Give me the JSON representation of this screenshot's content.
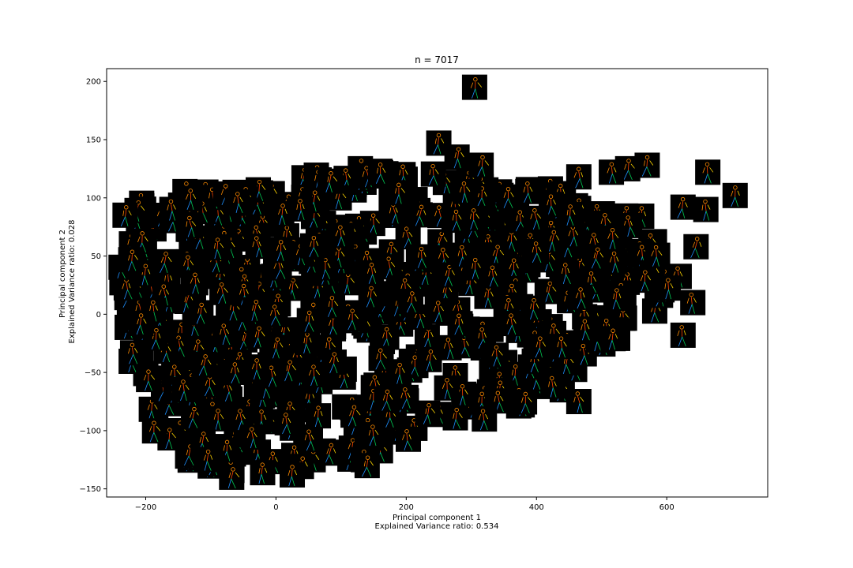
{
  "chart_data": {
    "type": "scatter",
    "title": "n = 7017",
    "xlabel": "Principal component 1",
    "xlabel_sub": "Explained Variance ratio: 0.534",
    "ylabel": "Principal component 2",
    "ylabel_sub": "Explained Variance ratio: 0.028",
    "xlim": [
      -260,
      755
    ],
    "ylim": [
      -157,
      211
    ],
    "xticks": [
      -200,
      0,
      200,
      400,
      600
    ],
    "xtick_labels": [
      "−200",
      "0",
      "200",
      "400",
      "600"
    ],
    "yticks": [
      -150,
      -100,
      -50,
      0,
      50,
      100,
      150,
      200
    ],
    "ytick_labels": [
      "−150",
      "−100",
      "−50",
      "0",
      "50",
      "100",
      "150",
      "200"
    ],
    "marker": "pose-thumbnail",
    "grid": false,
    "points_highlight": [
      {
        "x": 305,
        "y": 195
      },
      {
        "x": 250,
        "y": 147
      },
      {
        "x": 278,
        "y": 135
      },
      {
        "x": 315,
        "y": 128
      },
      {
        "x": 540,
        "y": 125
      },
      {
        "x": 570,
        "y": 128
      },
      {
        "x": 663,
        "y": 122
      },
      {
        "x": 705,
        "y": 102
      },
      {
        "x": 515,
        "y": 122
      },
      {
        "x": 465,
        "y": 118
      },
      {
        "x": 625,
        "y": 92
      },
      {
        "x": 660,
        "y": 90
      },
      {
        "x": 645,
        "y": 58
      },
      {
        "x": 640,
        "y": 10
      },
      {
        "x": 625,
        "y": -18
      },
      {
        "x": 465,
        "y": -75
      },
      {
        "x": 320,
        "y": -90
      },
      {
        "x": 140,
        "y": -130
      },
      {
        "x": 25,
        "y": -138
      },
      {
        "x": -68,
        "y": -140
      }
    ]
  }
}
